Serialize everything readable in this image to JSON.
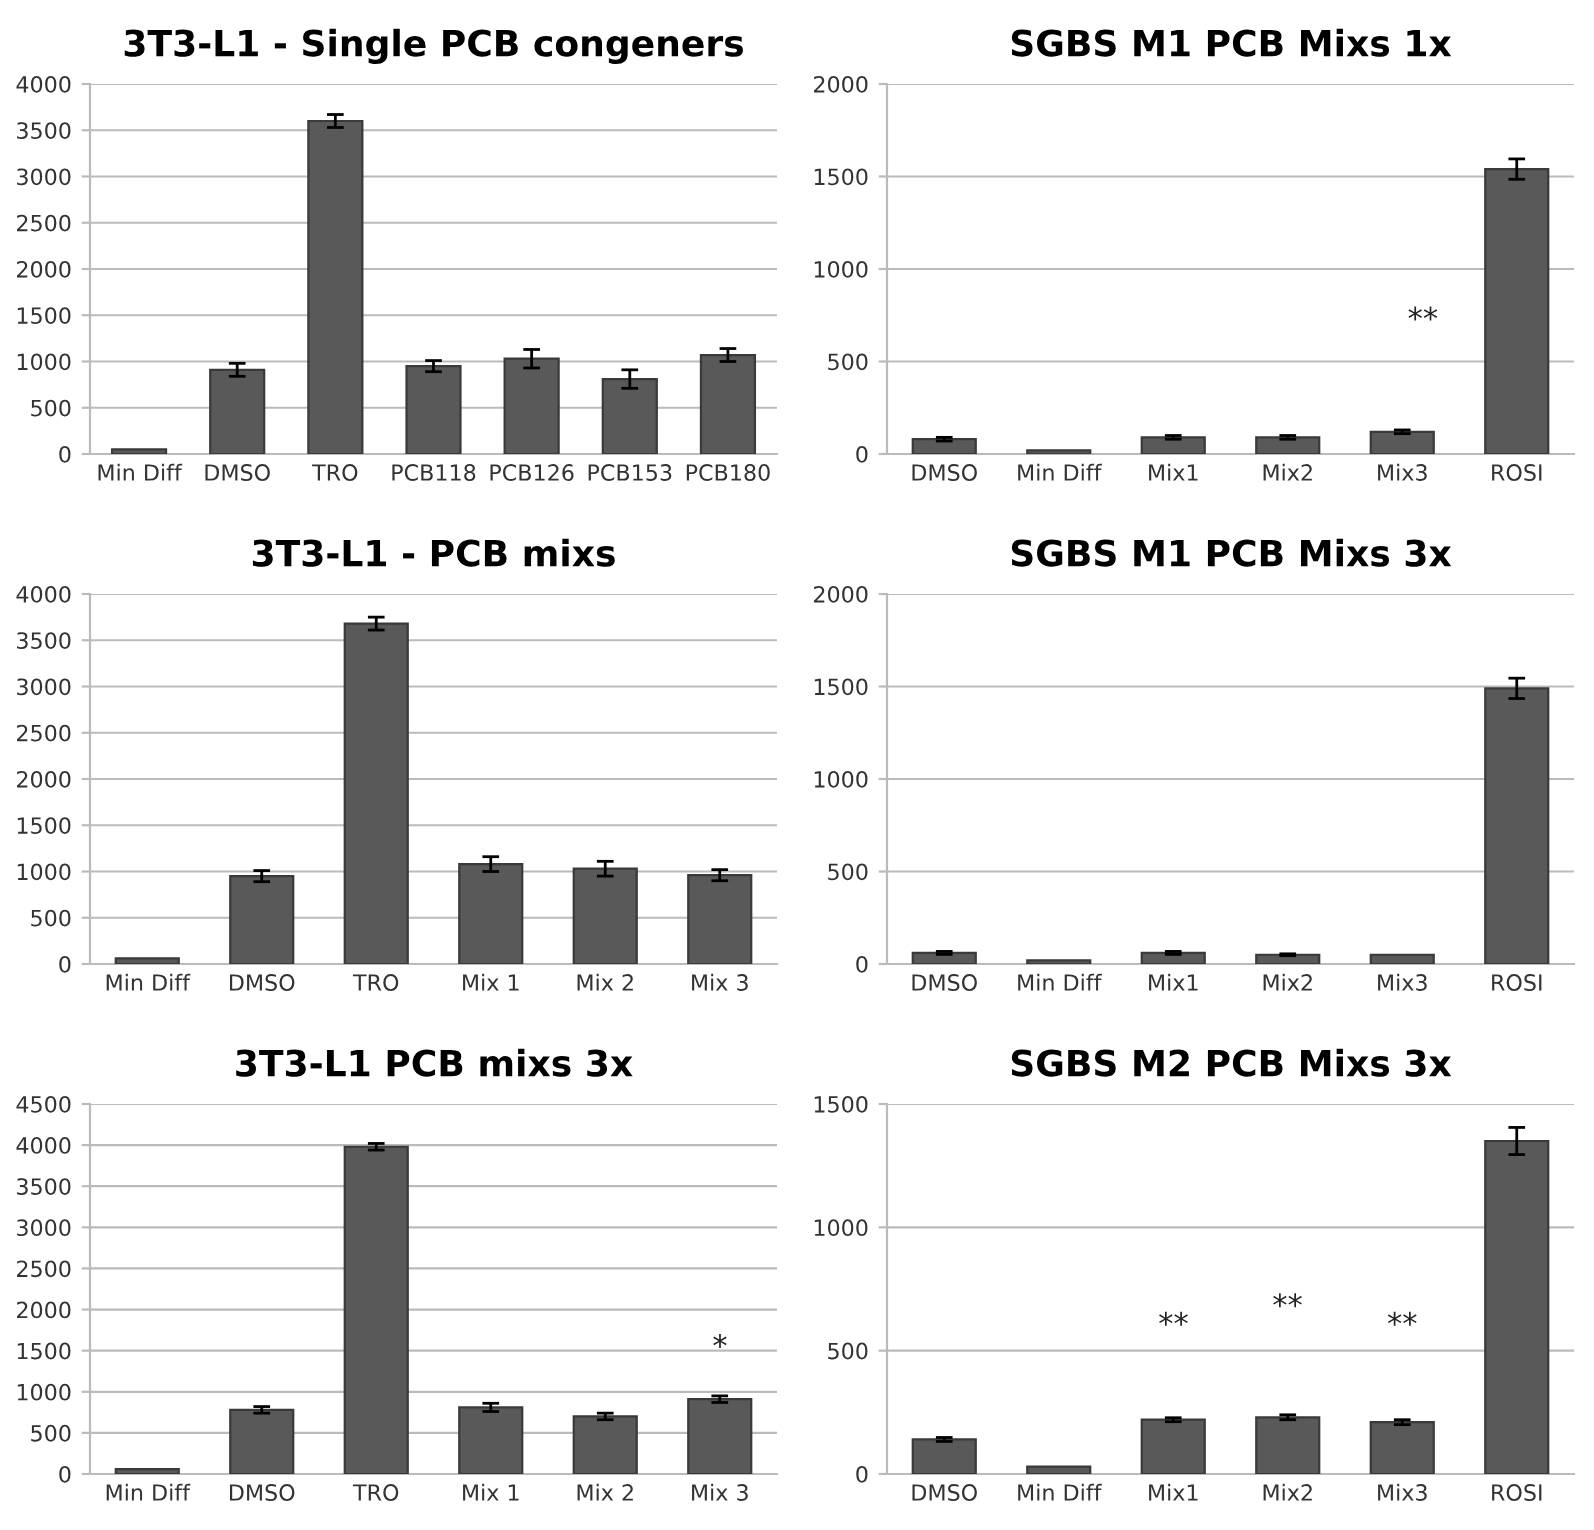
{
  "chart_data": [
    {
      "type": "bar",
      "title": "3T3-L1 - Single PCB congeners",
      "categories": [
        "Min Diff",
        "DMSO",
        "TRO",
        "PCB118",
        "PCB126",
        "PCB153",
        "PCB180"
      ],
      "values": [
        50,
        910,
        3600,
        950,
        1030,
        810,
        1070
      ],
      "errors": [
        null,
        70,
        70,
        60,
        100,
        100,
        70
      ],
      "color": "#595959",
      "ylim": [
        0,
        4000
      ],
      "yticks": [
        0,
        500,
        1000,
        1500,
        2000,
        2500,
        3000,
        3500,
        4000
      ],
      "grid": "y"
    },
    {
      "type": "bar",
      "title": "SGBS M1 PCB Mixs 1x",
      "categories": [
        "DMSO",
        "Min Diff",
        "Mix1",
        "Mix2",
        "Mix3",
        "ROSI"
      ],
      "values": [
        80,
        20,
        90,
        90,
        120,
        1540
      ],
      "errors": [
        10,
        null,
        10,
        10,
        10,
        55
      ],
      "color": "#595959",
      "ylim": [
        0,
        2000
      ],
      "yticks": [
        0,
        500,
        1000,
        1500,
        2000
      ],
      "grid": "y",
      "annotations": [
        "**"
      ]
    },
    {
      "type": "bar",
      "title": "3T3-L1 - PCB mixs",
      "categories": [
        "Min Diff",
        "DMSO",
        "TRO",
        "Mix 1",
        "Mix 2",
        "Mix 3"
      ],
      "values": [
        60,
        950,
        3680,
        1080,
        1030,
        960
      ],
      "errors": [
        null,
        60,
        70,
        80,
        80,
        60
      ],
      "color": "#595959",
      "ylim": [
        0,
        4000
      ],
      "yticks": [
        0,
        500,
        1000,
        1500,
        2000,
        2500,
        3000,
        3500,
        4000
      ],
      "grid": "y"
    },
    {
      "type": "bar",
      "title": "SGBS M1 PCB Mixs 3x",
      "categories": [
        "DMSO",
        "Min Diff",
        "Mix1",
        "Mix2",
        "Mix3",
        "ROSI"
      ],
      "values": [
        60,
        20,
        60,
        50,
        50,
        1490
      ],
      "errors": [
        8,
        null,
        8,
        5,
        null,
        55
      ],
      "color": "#595959",
      "ylim": [
        0,
        2000
      ],
      "yticks": [
        0,
        500,
        1000,
        1500,
        2000
      ],
      "grid": "y"
    },
    {
      "type": "bar",
      "title": "3T3-L1 PCB mixs 3x",
      "categories": [
        "Min Diff",
        "DMSO",
        "TRO",
        "Mix 1",
        "Mix 2",
        "Mix 3"
      ],
      "values": [
        60,
        780,
        3980,
        810,
        700,
        910
      ],
      "errors": [
        null,
        40,
        40,
        50,
        40,
        40
      ],
      "color": "#595959",
      "ylim": [
        0,
        4500
      ],
      "yticks": [
        0,
        500,
        1000,
        1500,
        2000,
        2500,
        3000,
        3500,
        4000,
        4500
      ],
      "grid": "y",
      "annotations": [
        "*"
      ]
    },
    {
      "type": "bar",
      "title": "SGBS M2 PCB Mixs 3x",
      "categories": [
        "DMSO",
        "Min Diff",
        "Mix1",
        "Mix2",
        "Mix3",
        "ROSI"
      ],
      "values": [
        140,
        30,
        220,
        230,
        210,
        1350
      ],
      "errors": [
        8,
        null,
        8,
        10,
        10,
        55
      ],
      "color": "#595959",
      "ylim": [
        0,
        1500
      ],
      "yticks": [
        0,
        500,
        1000,
        1500
      ],
      "grid": "y",
      "annotations": [
        "**",
        "**",
        "**"
      ]
    }
  ]
}
